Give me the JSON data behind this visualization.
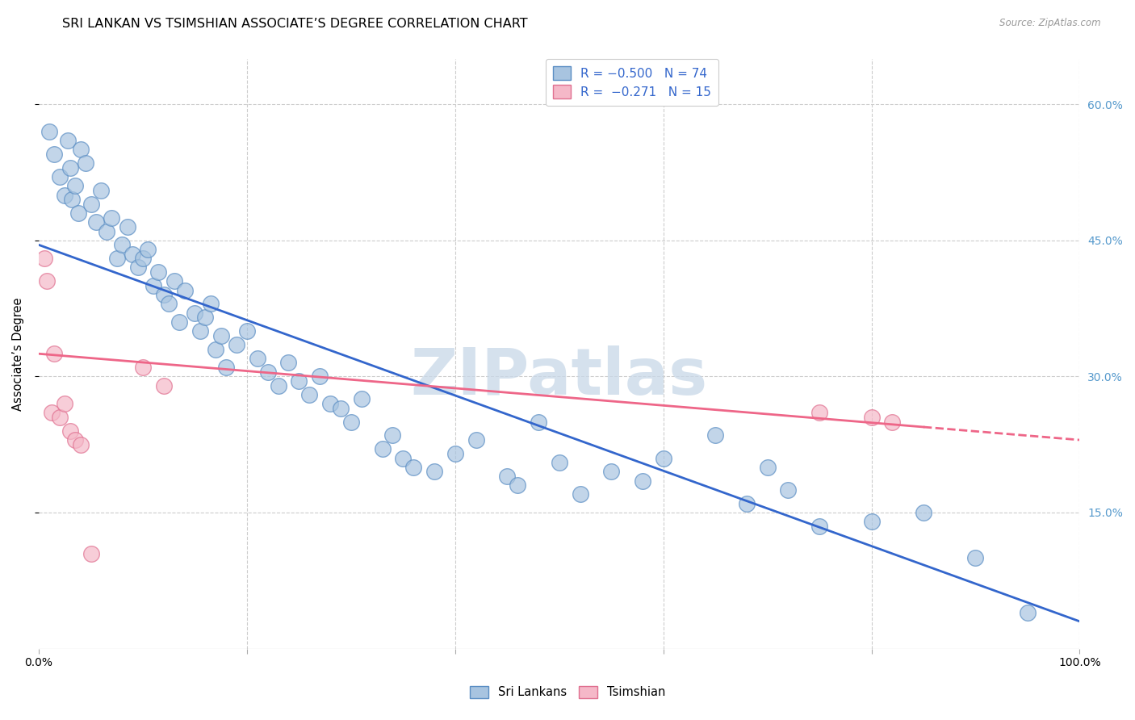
{
  "title": "SRI LANKAN VS TSIMSHIAN ASSOCIATE’S DEGREE CORRELATION CHART",
  "source": "Source: ZipAtlas.com",
  "ylabel": "Associate’s Degree",
  "watermark": "ZIPatlas",
  "sri_lankan_color": "#a8c4e0",
  "sri_lankan_edge": "#5b8ec4",
  "tsimshian_color": "#f5b8c8",
  "tsimshian_edge": "#e07090",
  "blue_line_color": "#3366cc",
  "pink_line_color": "#ee6688",
  "background_color": "#ffffff",
  "grid_color": "#cccccc",
  "right_axis_color": "#5599cc",
  "blue_intercept": 44.5,
  "blue_slope": -0.415,
  "pink_intercept": 32.5,
  "pink_slope": -0.095,
  "pink_solid_end": 85,
  "pink_dash_end": 100,
  "ylim_low": 0,
  "ylim_high": 65,
  "xlim_low": 0,
  "xlim_high": 100,
  "ytick_positions": [
    15,
    30,
    45,
    60
  ],
  "ytick_labels": [
    "15.0%",
    "30.0%",
    "45.0%",
    "60.0%"
  ],
  "xtick_left_label": "0.0%",
  "xtick_right_label": "100.0%",
  "legend1_label": "R = −0.500   N = 74",
  "legend2_label": "R =  −0.271   N = 15",
  "bottom_legend1": "Sri Lankans",
  "bottom_legend2": "Tsimshian",
  "sri_lankans_x": [
    1.0,
    1.5,
    2.0,
    2.5,
    2.8,
    3.0,
    3.2,
    3.5,
    3.8,
    4.0,
    4.5,
    5.0,
    5.5,
    6.0,
    6.5,
    7.0,
    7.5,
    8.0,
    8.5,
    9.0,
    9.5,
    10.0,
    10.5,
    11.0,
    11.5,
    12.0,
    12.5,
    13.0,
    13.5,
    14.0,
    15.0,
    15.5,
    16.0,
    16.5,
    17.0,
    17.5,
    18.0,
    19.0,
    20.0,
    21.0,
    22.0,
    23.0,
    24.0,
    25.0,
    26.0,
    27.0,
    28.0,
    29.0,
    30.0,
    31.0,
    33.0,
    34.0,
    35.0,
    36.0,
    38.0,
    40.0,
    42.0,
    45.0,
    46.0,
    48.0,
    50.0,
    52.0,
    55.0,
    58.0,
    60.0,
    65.0,
    68.0,
    70.0,
    72.0,
    75.0,
    80.0,
    85.0,
    90.0,
    95.0
  ],
  "sri_lankans_y": [
    57.0,
    54.5,
    52.0,
    50.0,
    56.0,
    53.0,
    49.5,
    51.0,
    48.0,
    55.0,
    53.5,
    49.0,
    47.0,
    50.5,
    46.0,
    47.5,
    43.0,
    44.5,
    46.5,
    43.5,
    42.0,
    43.0,
    44.0,
    40.0,
    41.5,
    39.0,
    38.0,
    40.5,
    36.0,
    39.5,
    37.0,
    35.0,
    36.5,
    38.0,
    33.0,
    34.5,
    31.0,
    33.5,
    35.0,
    32.0,
    30.5,
    29.0,
    31.5,
    29.5,
    28.0,
    30.0,
    27.0,
    26.5,
    25.0,
    27.5,
    22.0,
    23.5,
    21.0,
    20.0,
    19.5,
    21.5,
    23.0,
    19.0,
    18.0,
    25.0,
    20.5,
    17.0,
    19.5,
    18.5,
    21.0,
    23.5,
    16.0,
    20.0,
    17.5,
    13.5,
    14.0,
    15.0,
    10.0,
    4.0
  ],
  "tsimshian_x": [
    0.5,
    0.8,
    1.2,
    1.5,
    2.0,
    2.5,
    3.0,
    3.5,
    4.0,
    5.0,
    10.0,
    12.0,
    75.0,
    80.0,
    82.0
  ],
  "tsimshian_y": [
    43.0,
    40.5,
    26.0,
    32.5,
    25.5,
    27.0,
    24.0,
    23.0,
    22.5,
    10.5,
    31.0,
    29.0,
    26.0,
    25.5,
    25.0
  ]
}
